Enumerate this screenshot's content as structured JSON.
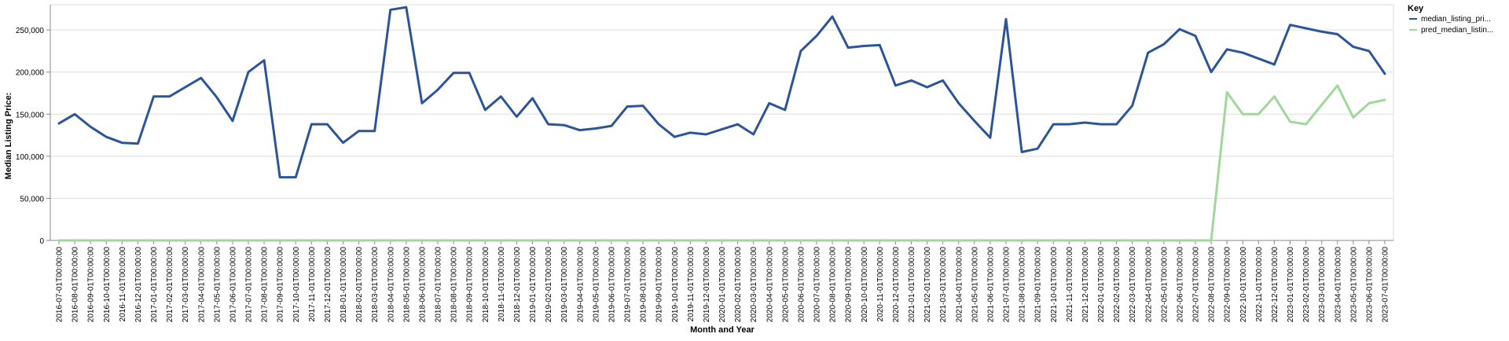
{
  "chart_data": {
    "type": "line",
    "xlabel": "Month and Year",
    "ylabel": "Median Listing Price:",
    "ylim": [
      0,
      280000
    ],
    "y_ticks": [
      0,
      50000,
      100000,
      150000,
      200000,
      250000
    ],
    "y_tick_labels": [
      "0",
      "50,000",
      "100,000",
      "150,000",
      "200,000",
      "250,000"
    ],
    "grid": true,
    "legend_position": "top-right",
    "legend_title": "Key",
    "x": [
      "2016-07-01T00:00:00",
      "2016-08-01T00:00:00",
      "2016-09-01T00:00:00",
      "2016-10-01T00:00:00",
      "2016-11-01T00:00:00",
      "2016-12-01T00:00:00",
      "2017-01-01T00:00:00",
      "2017-02-01T00:00:00",
      "2017-03-01T00:00:00",
      "2017-04-01T00:00:00",
      "2017-05-01T00:00:00",
      "2017-06-01T00:00:00",
      "2017-07-01T00:00:00",
      "2017-08-01T00:00:00",
      "2017-09-01T00:00:00",
      "2017-10-01T00:00:00",
      "2017-11-01T00:00:00",
      "2017-12-01T00:00:00",
      "2018-01-01T00:00:00",
      "2018-02-01T00:00:00",
      "2018-03-01T00:00:00",
      "2018-04-01T00:00:00",
      "2018-05-01T00:00:00",
      "2018-06-01T00:00:00",
      "2018-07-01T00:00:00",
      "2018-08-01T00:00:00",
      "2018-09-01T00:00:00",
      "2018-10-01T00:00:00",
      "2018-11-01T00:00:00",
      "2018-12-01T00:00:00",
      "2019-01-01T00:00:00",
      "2019-02-01T00:00:00",
      "2019-03-01T00:00:00",
      "2019-04-01T00:00:00",
      "2019-05-01T00:00:00",
      "2019-06-01T00:00:00",
      "2019-07-01T00:00:00",
      "2019-08-01T00:00:00",
      "2019-09-01T00:00:00",
      "2019-10-01T00:00:00",
      "2019-11-01T00:00:00",
      "2019-12-01T00:00:00",
      "2020-01-01T00:00:00",
      "2020-02-01T00:00:00",
      "2020-03-01T00:00:00",
      "2020-04-01T00:00:00",
      "2020-05-01T00:00:00",
      "2020-06-01T00:00:00",
      "2020-07-01T00:00:00",
      "2020-08-01T00:00:00",
      "2020-09-01T00:00:00",
      "2020-10-01T00:00:00",
      "2020-11-01T00:00:00",
      "2020-12-01T00:00:00",
      "2021-01-01T00:00:00",
      "2021-02-01T00:00:00",
      "2021-03-01T00:00:00",
      "2021-04-01T00:00:00",
      "2021-05-01T00:00:00",
      "2021-06-01T00:00:00",
      "2021-07-01T00:00:00",
      "2021-08-01T00:00:00",
      "2021-09-01T00:00:00",
      "2021-10-01T00:00:00",
      "2021-11-01T00:00:00",
      "2021-12-01T00:00:00",
      "2022-01-01T00:00:00",
      "2022-02-01T00:00:00",
      "2022-03-01T00:00:00",
      "2022-04-01T00:00:00",
      "2022-05-01T00:00:00",
      "2022-06-01T00:00:00",
      "2022-07-01T00:00:00",
      "2022-08-01T00:00:00",
      "2022-09-01T00:00:00",
      "2022-10-01T00:00:00",
      "2022-11-01T00:00:00",
      "2022-12-01T00:00:00",
      "2023-01-01T00:00:00",
      "2023-02-01T00:00:00",
      "2023-03-01T00:00:00",
      "2023-04-01T00:00:00",
      "2023-05-01T00:00:00",
      "2023-06-01T00:00:00",
      "2023-07-01T00:00:00"
    ],
    "series": [
      {
        "name": "median_listing_pri...",
        "color": "#2c5599",
        "values": [
          139000,
          150000,
          135000,
          123000,
          116000,
          115000,
          171000,
          171000,
          182000,
          193000,
          170000,
          142000,
          200000,
          214000,
          75000,
          75000,
          138000,
          138000,
          116000,
          130000,
          130000,
          274000,
          277000,
          163000,
          179000,
          199000,
          199000,
          155000,
          171000,
          147000,
          169000,
          138000,
          137000,
          131000,
          133000,
          136000,
          159000,
          160000,
          138000,
          123000,
          128000,
          126000,
          132000,
          138000,
          126000,
          163000,
          155000,
          225000,
          243000,
          266000,
          229000,
          231000,
          232000,
          184000,
          190000,
          182000,
          190000,
          163000,
          142000,
          122000,
          263000,
          105000,
          109000,
          138000,
          138000,
          140000,
          138000,
          138000,
          160000,
          223000,
          233000,
          251000,
          243000,
          200000,
          227000,
          223000,
          216000,
          209000,
          256000,
          252000,
          248000,
          245000,
          230000,
          225000,
          198000
        ]
      },
      {
        "name": "pred_median_listin...",
        "color": "#a0d79a",
        "values": [
          0,
          0,
          0,
          0,
          0,
          0,
          0,
          0,
          0,
          0,
          0,
          0,
          0,
          0,
          0,
          0,
          0,
          0,
          0,
          0,
          0,
          0,
          0,
          0,
          0,
          0,
          0,
          0,
          0,
          0,
          0,
          0,
          0,
          0,
          0,
          0,
          0,
          0,
          0,
          0,
          0,
          0,
          0,
          0,
          0,
          0,
          0,
          0,
          0,
          0,
          0,
          0,
          0,
          0,
          0,
          0,
          0,
          0,
          0,
          0,
          0,
          0,
          0,
          0,
          0,
          0,
          0,
          0,
          0,
          0,
          0,
          0,
          0,
          0,
          176000,
          150000,
          150000,
          171000,
          141000,
          138000,
          161000,
          184000,
          146000,
          163000,
          167000
        ]
      }
    ]
  }
}
